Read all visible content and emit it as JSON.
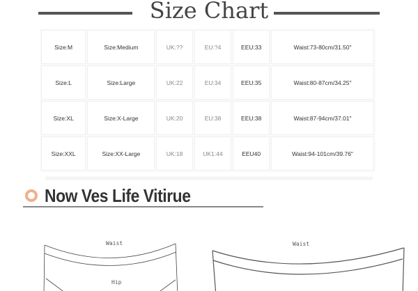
{
  "title": "Size Chart",
  "table": {
    "rows": [
      [
        "Size:M",
        "Size:Medium",
        "UK:??",
        "EU:?4",
        "EEU:33",
        "Waist:73-80cm/31.50\""
      ],
      [
        "Size:L",
        "Size:Large",
        "UK:22",
        "EU:34",
        "EEU:35",
        "Waist:80-87cm/34.25\""
      ],
      [
        "Size:XL",
        "Size:X-Large",
        "UK:20",
        "EU:38",
        "EEU:38",
        "Waist:87-94cm/37.01\""
      ],
      [
        "Size:XXL",
        "Size:XX-Large",
        "UK:18",
        "UK1:44",
        "EEU40",
        "Waist:94-101cm/39.76\""
      ]
    ]
  },
  "section_heading": "Now Ves Life Vitirue",
  "sketches": {
    "left_waist_label": "Waist",
    "left_hip_label": "Hip",
    "right_waist_label": "Waist"
  },
  "colors": {
    "accent_circle": "#f0b08c",
    "rule": "#555555"
  }
}
